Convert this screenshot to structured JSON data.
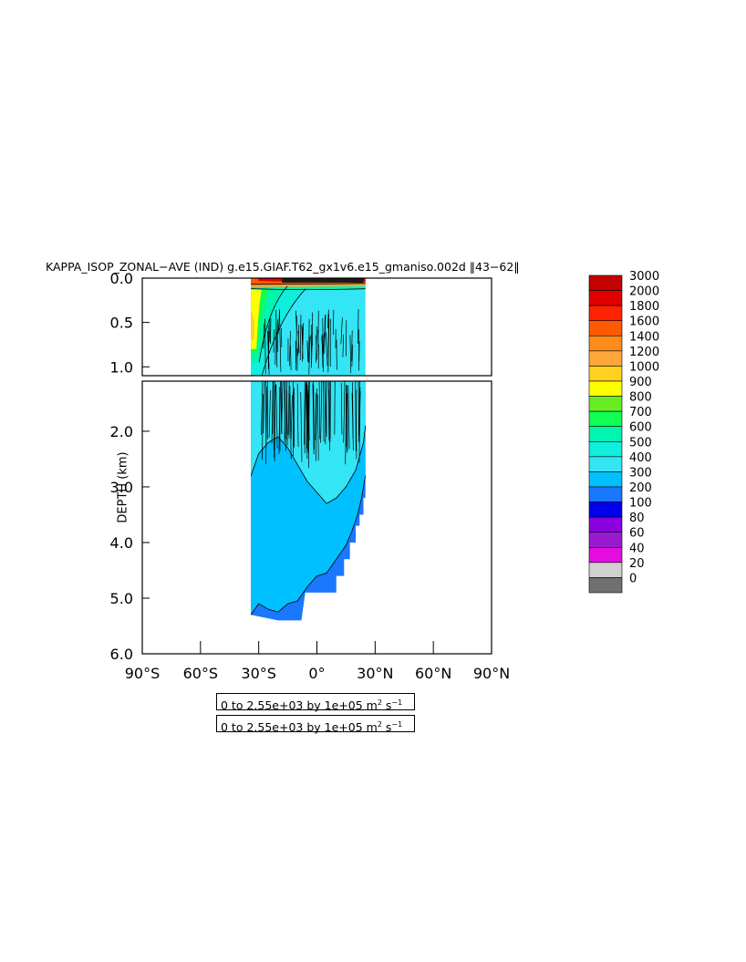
{
  "title": "KAPPA_ISOP_ZONAL−AVE (IND) g.e15.GIAF.T62_gx1v6.e15_gmaniso.002d ‖43−62‖",
  "chart_data": {
    "type": "heatmap",
    "ylabel": "DEPTH (km)",
    "x_ticks": [
      "90°S",
      "60°S",
      "30°S",
      "0°",
      "30°N",
      "60°N",
      "90°N"
    ],
    "x_tick_values": [
      -90,
      -60,
      -30,
      0,
      30,
      60,
      90
    ],
    "xlim": [
      -90,
      90
    ],
    "upper_panel": {
      "ylim": [
        0.0,
        1.1
      ],
      "y_ticks": [
        "0.0",
        "0.5",
        "1.0"
      ],
      "y_tick_values": [
        0.0,
        0.5,
        1.0
      ]
    },
    "lower_panel": {
      "ylim": [
        1.1,
        6.0
      ],
      "y_ticks": [
        "2.0",
        "3.0",
        "4.0",
        "5.0",
        "6.0"
      ],
      "y_tick_values": [
        2.0,
        3.0,
        4.0,
        5.0,
        6.0
      ]
    },
    "data_lat_range": [
      -34,
      25
    ],
    "colorbar": {
      "levels": [
        "3000",
        "2000",
        "1800",
        "1600",
        "1400",
        "1200",
        "1000",
        "900",
        "800",
        "700",
        "600",
        "500",
        "400",
        "300",
        "200",
        "100",
        "80",
        "60",
        "40",
        "20",
        "0"
      ],
      "colors": [
        "#c40000",
        "#e00000",
        "#ff2200",
        "#ff5a00",
        "#ff8c1a",
        "#ffa63a",
        "#ffd21f",
        "#ffff00",
        "#66ee22",
        "#11ff55",
        "#00f5b0",
        "#11eedd",
        "#33e5f5",
        "#00c0ff",
        "#1a78ff",
        "#0000ee",
        "#8a00e0",
        "#9a1ad0",
        "#e40ce0",
        "#d0d0d0",
        "#707070"
      ]
    },
    "field_summary": {
      "surface_max_band": "2000-3000",
      "southern_subsurface_band": "1000-1600",
      "interior_band": "300-400",
      "deep_band": "200-300",
      "bottom_band": "100-200"
    },
    "contour_info": [
      "0 to 2.55e+03 by 1e+05 m",
      "0 to 2.55e+03 by 1e+05 m"
    ],
    "contour_unit_exp": "2",
    "contour_unit_tail": " s",
    "contour_unit_exp2": "−1"
  }
}
